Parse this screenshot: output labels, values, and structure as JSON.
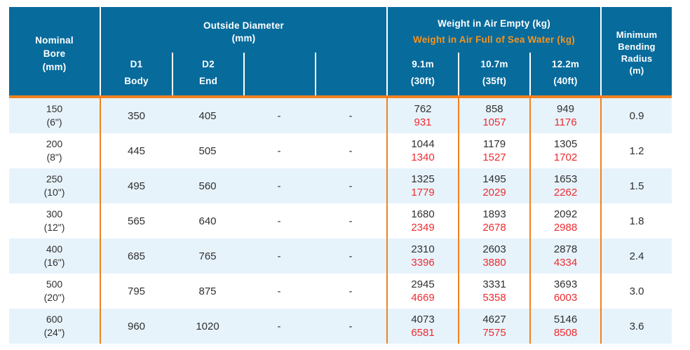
{
  "colors": {
    "header_bg": "#076b9c",
    "header_text": "#ffffff",
    "accent_line": "#ef8222",
    "accent_text": "#f7941d",
    "row_bg": "#ffffff",
    "row_alt_bg": "#e7f3fb",
    "body_text": "#303030",
    "red_text": "#ed2b2f"
  },
  "chart_data": {
    "type": "table",
    "title": "Pipe specification table",
    "header": {
      "nominal_bore": "Nominal\nBore\n(mm)",
      "outside_diameter": "Outside Diameter\n(mm)",
      "od_subcols": [
        {
          "id": "D1",
          "label": "Body"
        },
        {
          "id": "D2",
          "label": "End"
        },
        {
          "id": "",
          "label": ""
        },
        {
          "id": "",
          "label": ""
        }
      ],
      "weight_empty_label": "Weight in Air Empty (kg)",
      "weight_full_label": "Weight in Air Full of Sea Water (kg)",
      "weight_subcols": [
        {
          "length": "9.1m",
          "feet": "(30ft)"
        },
        {
          "length": "10.7m",
          "feet": "(35ft)"
        },
        {
          "length": "12.2m",
          "feet": "(40ft)"
        }
      ],
      "min_bending_radius": "Minimum\nBending\nRadius\n(m)"
    },
    "rows": [
      {
        "bore": "150\n(6\")",
        "d1": "350",
        "d2": "405",
        "col4": "-",
        "col5": "-",
        "w30_empty": "762",
        "w30_full": "931",
        "w35_empty": "858",
        "w35_full": "1057",
        "w40_empty": "949",
        "w40_full": "1176",
        "radius": "0.9"
      },
      {
        "bore": "200\n(8\")",
        "d1": "445",
        "d2": "505",
        "col4": "-",
        "col5": "-",
        "w30_empty": "1044",
        "w30_full": "1340",
        "w35_empty": "1179",
        "w35_full": "1527",
        "w40_empty": "1305",
        "w40_full": "1702",
        "radius": "1.2"
      },
      {
        "bore": "250\n(10\")",
        "d1": "495",
        "d2": "560",
        "col4": "-",
        "col5": "-",
        "w30_empty": "1325",
        "w30_full": "1779",
        "w35_empty": "1495",
        "w35_full": "2029",
        "w40_empty": "1653",
        "w40_full": "2262",
        "radius": "1.5"
      },
      {
        "bore": "300\n(12\")",
        "d1": "565",
        "d2": "640",
        "col4": "-",
        "col5": "-",
        "w30_empty": "1680",
        "w30_full": "2349",
        "w35_empty": "1893",
        "w35_full": "2678",
        "w40_empty": "2092",
        "w40_full": "2988",
        "radius": "1.8"
      },
      {
        "bore": "400\n(16\")",
        "d1": "685",
        "d2": "765",
        "col4": "-",
        "col5": "-",
        "w30_empty": "2310",
        "w30_full": "3396",
        "w35_empty": "2603",
        "w35_full": "3880",
        "w40_empty": "2878",
        "w40_full": "4334",
        "radius": "2.4"
      },
      {
        "bore": "500\n(20\")",
        "d1": "795",
        "d2": "875",
        "col4": "-",
        "col5": "-",
        "w30_empty": "2945",
        "w30_full": "4669",
        "w35_empty": "3331",
        "w35_full": "5358",
        "w40_empty": "3693",
        "w40_full": "6003",
        "radius": "3.0"
      },
      {
        "bore": "600\n(24\")",
        "d1": "960",
        "d2": "1020",
        "col4": "-",
        "col5": "-",
        "w30_empty": "4073",
        "w30_full": "6581",
        "w35_empty": "4627",
        "w35_full": "7575",
        "w40_empty": "5146",
        "w40_full": "8508",
        "radius": "3.6"
      }
    ]
  }
}
